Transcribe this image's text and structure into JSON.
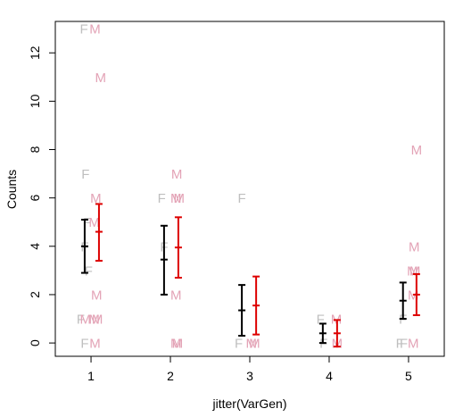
{
  "chart_data": {
    "type": "scatter",
    "title": "",
    "xlabel": "jitter(VarGen)",
    "ylabel": "Counts",
    "xlim": [
      0.55,
      5.45
    ],
    "ylim": [
      -0.55,
      13.3
    ],
    "x_ticks": [
      "1",
      "2",
      "3",
      "4",
      "5"
    ],
    "y_ticks": [
      "0",
      "2",
      "4",
      "6",
      "8",
      "10",
      "12"
    ],
    "grid": false,
    "legend": "none",
    "colors": {
      "F": "#bfbfbf",
      "M": "#e3a3b6",
      "F_bar": "#000000",
      "M_bar": "#dd0000"
    },
    "points": [
      {
        "label": "F",
        "x": 0.91,
        "y": 13
      },
      {
        "label": "M",
        "x": 1.05,
        "y": 13
      },
      {
        "label": "M",
        "x": 1.12,
        "y": 11
      },
      {
        "label": "F",
        "x": 0.93,
        "y": 7
      },
      {
        "label": "M",
        "x": 1.06,
        "y": 6
      },
      {
        "label": "F",
        "x": 0.95,
        "y": 5
      },
      {
        "label": "M",
        "x": 1.04,
        "y": 5
      },
      {
        "label": "F",
        "x": 0.92,
        "y": 4
      },
      {
        "label": "F",
        "x": 0.97,
        "y": 3
      },
      {
        "label": "M",
        "x": 1.07,
        "y": 2
      },
      {
        "label": "F",
        "x": 0.87,
        "y": 1
      },
      {
        "label": "M",
        "x": 0.93,
        "y": 1
      },
      {
        "label": "M",
        "x": 1.04,
        "y": 1
      },
      {
        "label": "M",
        "x": 1.08,
        "y": 1
      },
      {
        "label": "F",
        "x": 0.92,
        "y": 0
      },
      {
        "label": "M",
        "x": 1.05,
        "y": 0
      },
      {
        "label": "M",
        "x": 2.08,
        "y": 7
      },
      {
        "label": "F",
        "x": 1.89,
        "y": 6
      },
      {
        "label": "M",
        "x": 2.07,
        "y": 6
      },
      {
        "label": "M",
        "x": 2.11,
        "y": 6
      },
      {
        "label": "F",
        "x": 1.92,
        "y": 4
      },
      {
        "label": "M",
        "x": 2.07,
        "y": 2
      },
      {
        "label": "M",
        "x": 2.07,
        "y": 0
      },
      {
        "label": "M",
        "x": 2.09,
        "y": 0
      },
      {
        "label": "F",
        "x": 2.9,
        "y": 6
      },
      {
        "label": "F",
        "x": 2.86,
        "y": 0
      },
      {
        "label": "M",
        "x": 3.02,
        "y": 0
      },
      {
        "label": "M",
        "x": 3.06,
        "y": 0
      },
      {
        "label": "F",
        "x": 3.89,
        "y": 1
      },
      {
        "label": "M",
        "x": 4.09,
        "y": 1
      },
      {
        "label": "F",
        "x": 3.93,
        "y": 0
      },
      {
        "label": "M",
        "x": 4.1,
        "y": 0
      },
      {
        "label": "M",
        "x": 5.1,
        "y": 8
      },
      {
        "label": "M",
        "x": 5.07,
        "y": 4
      },
      {
        "label": "M",
        "x": 5.05,
        "y": 3
      },
      {
        "label": "M",
        "x": 5.08,
        "y": 3
      },
      {
        "label": "M",
        "x": 5.06,
        "y": 2
      },
      {
        "label": "F",
        "x": 4.93,
        "y": 1
      },
      {
        "label": "F",
        "x": 4.89,
        "y": 0
      },
      {
        "label": "F",
        "x": 4.94,
        "y": 0
      },
      {
        "label": "M",
        "x": 5.06,
        "y": 0
      }
    ],
    "error_bars": [
      {
        "group": "F",
        "x": 0.92,
        "mean": 4.0,
        "lower": 2.9,
        "upper": 5.1
      },
      {
        "group": "M",
        "x": 1.1,
        "mean": 4.6,
        "lower": 3.4,
        "upper": 5.75
      },
      {
        "group": "F",
        "x": 1.92,
        "mean": 3.45,
        "lower": 2.0,
        "upper": 4.85
      },
      {
        "group": "M",
        "x": 2.1,
        "mean": 3.95,
        "lower": 2.7,
        "upper": 5.2
      },
      {
        "group": "F",
        "x": 2.9,
        "mean": 1.35,
        "lower": 0.3,
        "upper": 2.4
      },
      {
        "group": "M",
        "x": 3.08,
        "mean": 1.55,
        "lower": 0.35,
        "upper": 2.75
      },
      {
        "group": "F",
        "x": 3.92,
        "mean": 0.4,
        "lower": 0.0,
        "upper": 0.8
      },
      {
        "group": "M",
        "x": 4.1,
        "mean": 0.4,
        "lower": -0.15,
        "upper": 0.95
      },
      {
        "group": "F",
        "x": 4.93,
        "mean": 1.75,
        "lower": 1.0,
        "upper": 2.5
      },
      {
        "group": "M",
        "x": 5.1,
        "mean": 2.0,
        "lower": 1.15,
        "upper": 2.85
      }
    ]
  }
}
